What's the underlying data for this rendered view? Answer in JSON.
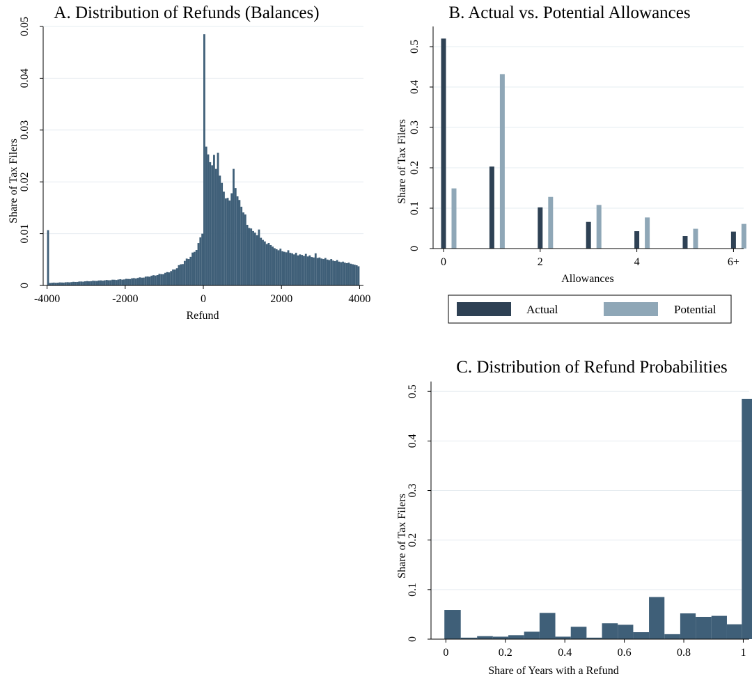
{
  "chart_data": [
    {
      "id": "panelA",
      "type": "bar",
      "title": "A. Distribution of Refunds (Balances)",
      "xlabel": "Refund",
      "ylabel": "Share of Tax Filers",
      "xlim": [
        -4000,
        4000
      ],
      "ylim": [
        0,
        0.05
      ],
      "xticks": [
        -4000,
        -2000,
        0,
        2000,
        4000
      ],
      "yticks": [
        0,
        0.01,
        0.02,
        0.03,
        0.04,
        0.05
      ],
      "ytick_labels": [
        "0",
        "0.01",
        "0.02",
        "0.03",
        "0.04",
        "0.05"
      ],
      "grid": true,
      "color": "#3f5f78",
      "bin_width": 50,
      "anchors": [
        [
          -3950,
          0.0005
        ],
        [
          -3500,
          0.0006
        ],
        [
          -3000,
          0.0008
        ],
        [
          -2500,
          0.001
        ],
        [
          -2000,
          0.0012
        ],
        [
          -1500,
          0.0016
        ],
        [
          -1000,
          0.0023
        ],
        [
          -750,
          0.003
        ],
        [
          -500,
          0.0045
        ],
        [
          -300,
          0.0058
        ],
        [
          -200,
          0.0068
        ],
        [
          -100,
          0.0083
        ],
        [
          -50,
          0.0098
        ],
        [
          -25,
          0.0105
        ]
      ],
      "values_pos": [
        0.0485,
        0.0268,
        0.0253,
        0.0238,
        0.0232,
        0.0252,
        0.0225,
        0.0256,
        0.0212,
        0.0198,
        0.0181,
        0.0168,
        0.0169,
        0.0164,
        0.0178,
        0.0225,
        0.0188,
        0.0172,
        0.0165,
        0.0152,
        0.0141,
        0.0137,
        0.0117,
        0.0111,
        0.011,
        0.0105,
        0.0102,
        0.0097,
        0.0108,
        0.0092,
        0.0088,
        0.0085,
        0.008,
        0.0082,
        0.0078,
        0.0075,
        0.0072,
        0.007,
        0.0068,
        0.0071,
        0.0066,
        0.0065,
        0.0064,
        0.0068,
        0.0063,
        0.0062,
        0.006,
        0.0063,
        0.0058,
        0.006,
        0.0059,
        0.0057,
        0.0061,
        0.0056,
        0.0058,
        0.0055,
        0.0054,
        0.0062,
        0.0053,
        0.0054,
        0.0052,
        0.0051,
        0.0053,
        0.005,
        0.0049,
        0.0051,
        0.0048,
        0.0047,
        0.0049,
        0.0046,
        0.0045,
        0.0046,
        0.0044,
        0.0043,
        0.0044,
        0.0042,
        0.0041,
        0.004,
        0.0039,
        0.0037
      ]
    },
    {
      "id": "panelB",
      "type": "bar",
      "title": "B. Actual vs. Potential Allowances",
      "xlabel": "Allowances",
      "ylabel": "Share of Tax Filers",
      "categories": [
        "0",
        "1",
        "2",
        "3",
        "4",
        "5",
        "6+"
      ],
      "xticks": [
        0,
        2,
        4,
        6
      ],
      "xtick_labels": [
        "0",
        "2",
        "4",
        "6+"
      ],
      "ylim": [
        0,
        0.55
      ],
      "yticks": [
        0,
        0.1,
        0.2,
        0.3,
        0.4,
        0.5
      ],
      "ytick_labels": [
        "0",
        "0.1",
        "0.2",
        "0.3",
        "0.4",
        "0.5"
      ],
      "grid": true,
      "legend_position": "bottom",
      "series": [
        {
          "name": "Actual",
          "color": "#2e4154",
          "values": [
            0.52,
            0.203,
            0.102,
            0.066,
            0.043,
            0.031,
            0.042
          ]
        },
        {
          "name": "Potential",
          "color": "#8fa7b7",
          "values": [
            0.149,
            0.432,
            0.128,
            0.108,
            0.077,
            0.049,
            0.061
          ]
        }
      ]
    },
    {
      "id": "panelC",
      "type": "bar",
      "title": "C. Distribution of Refund Probabilities",
      "xlabel": "Share of Years with a Refund",
      "ylabel": "Share of Tax Filers",
      "xlim": [
        -0.05,
        1.02
      ],
      "ylim": [
        0,
        0.52
      ],
      "xticks": [
        0,
        0.2,
        0.4,
        0.6,
        0.8,
        1
      ],
      "xtick_labels": [
        "0",
        "0.2",
        "0.4",
        "0.6",
        "0.8",
        "1"
      ],
      "yticks": [
        0,
        0.1,
        0.2,
        0.3,
        0.4,
        0.5
      ],
      "ytick_labels": [
        "0",
        "0.1",
        "0.2",
        "0.3",
        "0.4",
        "0.5"
      ],
      "grid": true,
      "color": "#3f5f78",
      "bins": [
        {
          "x0": -0.005,
          "x1": 0.05,
          "value": 0.059
        },
        {
          "x0": 0.05,
          "x1": 0.105,
          "value": 0.003
        },
        {
          "x0": 0.105,
          "x1": 0.158,
          "value": 0.006
        },
        {
          "x0": 0.158,
          "x1": 0.21,
          "value": 0.005
        },
        {
          "x0": 0.21,
          "x1": 0.263,
          "value": 0.008
        },
        {
          "x0": 0.263,
          "x1": 0.315,
          "value": 0.015
        },
        {
          "x0": 0.315,
          "x1": 0.368,
          "value": 0.053
        },
        {
          "x0": 0.368,
          "x1": 0.42,
          "value": 0.005
        },
        {
          "x0": 0.42,
          "x1": 0.473,
          "value": 0.025
        },
        {
          "x0": 0.473,
          "x1": 0.525,
          "value": 0.003
        },
        {
          "x0": 0.525,
          "x1": 0.578,
          "value": 0.032
        },
        {
          "x0": 0.578,
          "x1": 0.63,
          "value": 0.029
        },
        {
          "x0": 0.63,
          "x1": 0.683,
          "value": 0.014
        },
        {
          "x0": 0.683,
          "x1": 0.735,
          "value": 0.085
        },
        {
          "x0": 0.735,
          "x1": 0.788,
          "value": 0.01
        },
        {
          "x0": 0.788,
          "x1": 0.84,
          "value": 0.052
        },
        {
          "x0": 0.84,
          "x1": 0.893,
          "value": 0.045
        },
        {
          "x0": 0.893,
          "x1": 0.945,
          "value": 0.047
        },
        {
          "x0": 0.945,
          "x1": 0.995,
          "value": 0.03
        },
        {
          "x0": 0.995,
          "x1": 1.055,
          "value": 0.485
        }
      ]
    }
  ]
}
